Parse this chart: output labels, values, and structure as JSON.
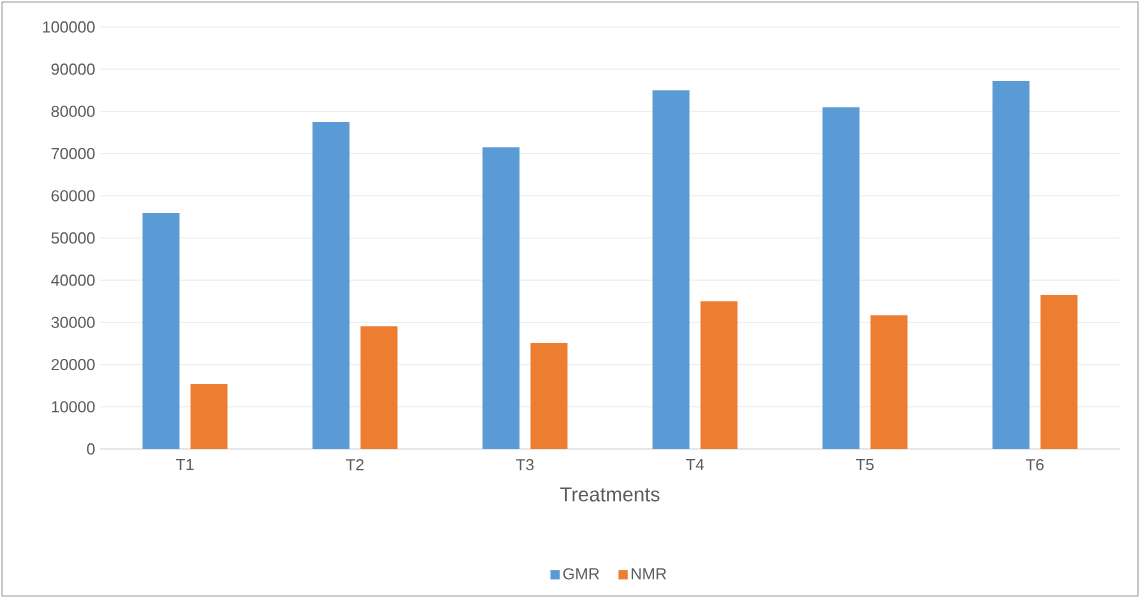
{
  "chart_data": {
    "type": "bar",
    "xlabel": "Treatments",
    "categories": [
      "T1",
      "T2",
      "T3",
      "T4",
      "T5",
      "T6"
    ],
    "series": [
      {
        "name": "GMR",
        "color": "#5b9bd5",
        "values": [
          55900,
          77500,
          71500,
          85000,
          81000,
          87200
        ]
      },
      {
        "name": "NMR",
        "color": "#ed7d31",
        "values": [
          15400,
          29100,
          25100,
          35000,
          31700,
          36500
        ]
      }
    ],
    "ylim": [
      0,
      100000
    ],
    "yticks": [
      0,
      10000,
      20000,
      30000,
      40000,
      50000,
      60000,
      70000,
      80000,
      90000,
      100000
    ],
    "grid": "y",
    "legend": "bottom"
  }
}
